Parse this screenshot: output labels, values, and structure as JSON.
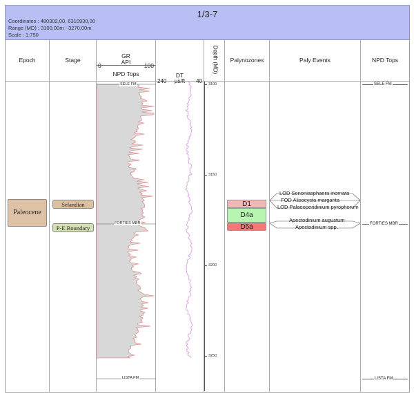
{
  "header": {
    "title": "1/3-7",
    "coordinates": "Coordinates : 480302,00, 6310930,00",
    "range": "Range (MD) : 3100,00m - 3270,00m",
    "scale": "Scale :       1:750"
  },
  "columns": {
    "epoch": "Epoch",
    "stage": "Stage",
    "gr_title": "GR",
    "gr_unit": "API",
    "gr_min": "0",
    "gr_max": "100",
    "npd_tops_sub": "NPD Tops",
    "dt_title": "DT",
    "dt_unit": "µs/ft",
    "dt_min": "240",
    "dt_max": "40",
    "depth": "Depth (MD)",
    "palynozones": "Palynozones",
    "paly_events": "Paly Events",
    "npd_tops": "NPD Tops"
  },
  "depth_ticks": [
    "3100",
    "3150",
    "3200",
    "3250"
  ],
  "epoch": {
    "label": "Paleocene",
    "color": "#dfc2a6"
  },
  "stages": [
    {
      "label": "Selandian",
      "color": "#dcc0a0"
    },
    {
      "label": "P-E Boundary",
      "color": "#d4e0b4"
    }
  ],
  "palynozones": [
    {
      "label": "D1",
      "color": "#f5b6b6"
    },
    {
      "label": "D4a",
      "color": "#b8f5b0"
    },
    {
      "label": "D5a",
      "color": "#f27878"
    }
  ],
  "paly_events": [
    "LOD Senoniasphaera inornata",
    "FOD Alisocysta margarita",
    "LOD Palaeoperidinium pyrophorum",
    "Apectodinium augustum",
    "Apectodinium spp."
  ],
  "formation_tops": [
    "SELE FM",
    "FORTIES MBR",
    "LISTA FM"
  ],
  "colors": {
    "header_bg": "#b8bff5",
    "gr_fill": "#d8d8d8",
    "gr_curve": "#e07070",
    "dt_curve": "#d070d8"
  }
}
